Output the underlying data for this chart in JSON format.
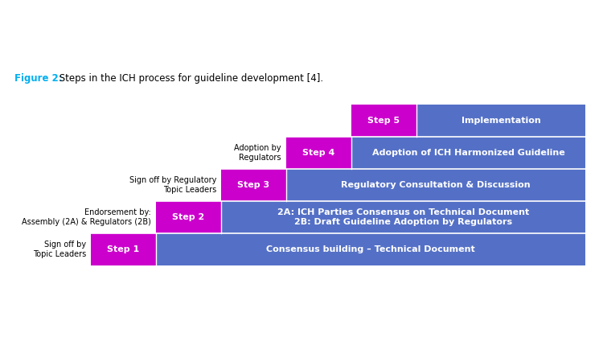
{
  "title_figure": "Figure 2:",
  "title_rest": " Steps in the ICH process for guideline development [4].",
  "title_color": "#00AEEF",
  "title_rest_color": "#000000",
  "background_color": "#ffffff",
  "magenta": "#CC00CC",
  "blue": "#5470C6",
  "steps": [
    {
      "step_label": "Step 1",
      "left_label": "Sign off by\nTopic Leaders",
      "description": "Consensus building – Technical Document",
      "row": 0
    },
    {
      "step_label": "Step 2",
      "left_label": "Endorsement by:\nAssembly (2A) & Regulators (2B)",
      "description": "2A: ICH Parties Consensus on Technical Document\n2B: Draft Guideline Adoption by Regulators",
      "row": 1
    },
    {
      "step_label": "Step 3",
      "left_label": "Sign off by Regulatory\nTopic Leaders",
      "description": "Regulatory Consultation & Discussion",
      "row": 2
    },
    {
      "step_label": "Step 4",
      "left_label": "Adoption by\nRegulators",
      "description": "Adoption of ICH Harmonized Guideline",
      "row": 3
    },
    {
      "step_label": "Step 5",
      "left_label": "",
      "description": "Implementation",
      "row": 4
    }
  ],
  "fig_width": 7.5,
  "fig_height": 4.5,
  "dpi": 100
}
